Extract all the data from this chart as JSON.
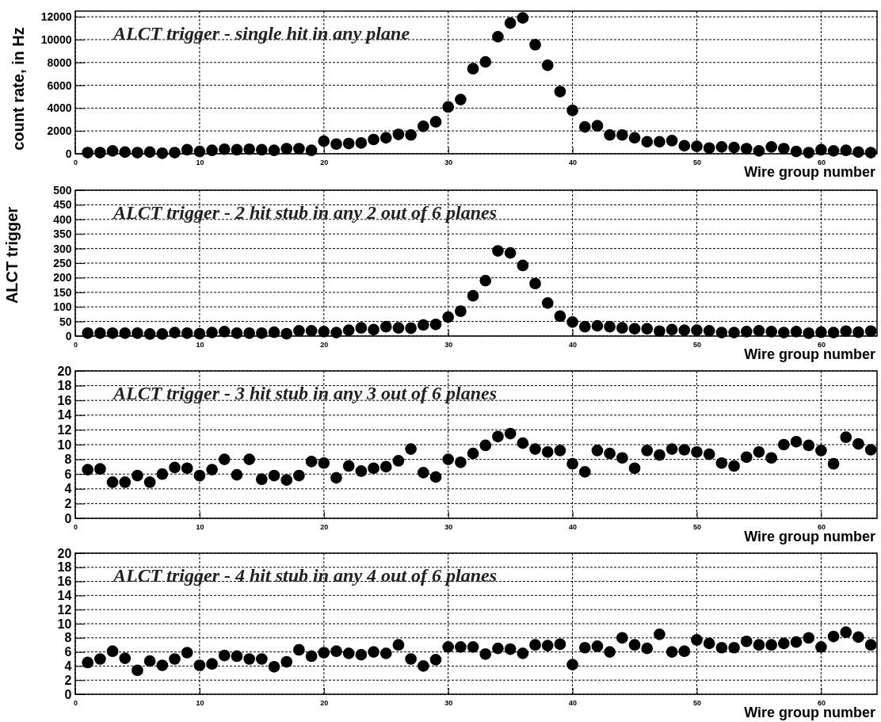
{
  "chart_data": [
    {
      "type": "scatter",
      "title": "ALCT trigger - single hit in any plane",
      "xlabel": "Wire group number",
      "ylabel": "count rate, in Hz",
      "marker": "circle",
      "grid": true,
      "xlim": [
        0,
        64.5
      ],
      "xticks": [
        0,
        10,
        20,
        30,
        40,
        50,
        60
      ],
      "ylim": [
        0,
        12500
      ],
      "yticks": [
        0,
        2000,
        4000,
        6000,
        8000,
        10000,
        12000
      ],
      "x": [
        1,
        2,
        3,
        4,
        5,
        6,
        7,
        8,
        9,
        10,
        11,
        12,
        13,
        14,
        15,
        16,
        17,
        18,
        19,
        20,
        21,
        22,
        23,
        24,
        25,
        26,
        27,
        28,
        29,
        30,
        31,
        32,
        33,
        34,
        35,
        36,
        37,
        38,
        39,
        40,
        41,
        42,
        43,
        44,
        45,
        46,
        47,
        48,
        49,
        50,
        51,
        52,
        53,
        54,
        55,
        56,
        57,
        58,
        59,
        60,
        61,
        62,
        63,
        64
      ],
      "series": [
        {
          "color": "#000000",
          "values": [
            100,
            100,
            250,
            150,
            100,
            150,
            50,
            100,
            350,
            200,
            300,
            400,
            350,
            400,
            350,
            300,
            450,
            450,
            300,
            1100,
            850,
            900,
            950,
            1250,
            1400,
            1700,
            1650,
            2400,
            2800,
            4100,
            4750,
            7450,
            8050,
            10250,
            11450,
            11900,
            9550,
            7750,
            5450,
            3800,
            2350,
            2450,
            1650,
            1650,
            1400,
            1050,
            1050,
            1150,
            700,
            650,
            500,
            600,
            550,
            450,
            250,
            600,
            450,
            200,
            100,
            350,
            250,
            300,
            150,
            100
          ]
        }
      ]
    },
    {
      "type": "scatter",
      "title": "ALCT trigger - 2 hit stub in any 2 out of 6 planes",
      "xlabel": "Wire group number",
      "ylabel": "ALCT trigger",
      "marker": "circle",
      "grid": true,
      "xlim": [
        0,
        64.5
      ],
      "xticks": [
        0,
        10,
        20,
        30,
        40,
        50,
        60
      ],
      "ylim": [
        0,
        500
      ],
      "yticks": [
        0,
        50,
        100,
        150,
        200,
        250,
        300,
        350,
        400,
        450,
        500
      ],
      "x": [
        1,
        2,
        3,
        4,
        5,
        6,
        7,
        8,
        9,
        10,
        11,
        12,
        13,
        14,
        15,
        16,
        17,
        18,
        19,
        20,
        21,
        22,
        23,
        24,
        25,
        26,
        27,
        28,
        29,
        30,
        31,
        32,
        33,
        34,
        35,
        36,
        37,
        38,
        39,
        40,
        41,
        42,
        43,
        44,
        45,
        46,
        47,
        48,
        49,
        50,
        51,
        52,
        53,
        54,
        55,
        56,
        57,
        58,
        59,
        60,
        61,
        62,
        63,
        64
      ],
      "series": [
        {
          "color": "#000000",
          "values": [
            10,
            10,
            10,
            10,
            10,
            7,
            7,
            12,
            10,
            8,
            12,
            15,
            10,
            10,
            10,
            13,
            8,
            18,
            18,
            15,
            12,
            20,
            28,
            22,
            32,
            28,
            27,
            38,
            40,
            65,
            85,
            138,
            190,
            292,
            285,
            242,
            180,
            113,
            68,
            48,
            32,
            35,
            32,
            28,
            25,
            25,
            17,
            22,
            20,
            20,
            18,
            12,
            12,
            15,
            18,
            15,
            12,
            15,
            10,
            13,
            12,
            17,
            13,
            17
          ]
        }
      ]
    },
    {
      "type": "scatter",
      "title": "ALCT trigger - 3 hit stub in any 3 out of 6 planes",
      "xlabel": "Wire group number",
      "marker": "circle",
      "grid": true,
      "xlim": [
        0,
        64.5
      ],
      "xticks": [
        0,
        10,
        20,
        30,
        40,
        50,
        60
      ],
      "ylim": [
        0,
        20
      ],
      "yticks": [
        0,
        2,
        4,
        6,
        8,
        10,
        12,
        14,
        16,
        18,
        20
      ],
      "x": [
        1,
        2,
        3,
        4,
        5,
        6,
        7,
        8,
        9,
        10,
        11,
        12,
        13,
        14,
        15,
        16,
        17,
        18,
        19,
        20,
        21,
        22,
        23,
        24,
        25,
        26,
        27,
        28,
        29,
        30,
        31,
        32,
        33,
        34,
        35,
        36,
        37,
        38,
        39,
        40,
        41,
        42,
        43,
        44,
        45,
        46,
        47,
        48,
        49,
        50,
        51,
        52,
        53,
        54,
        55,
        56,
        57,
        58,
        59,
        60,
        61,
        62,
        63,
        64
      ],
      "series": [
        {
          "color": "#000000",
          "values": [
            6.6,
            6.7,
            4.9,
            4.9,
            5.8,
            4.9,
            6.0,
            6.9,
            6.8,
            5.8,
            6.6,
            8.0,
            5.9,
            8.0,
            5.3,
            5.8,
            5.2,
            5.8,
            7.7,
            7.5,
            5.5,
            7.1,
            6.4,
            6.8,
            7.0,
            7.8,
            9.4,
            6.2,
            5.6,
            8.0,
            7.6,
            8.8,
            9.9,
            11.1,
            11.5,
            10.2,
            9.4,
            9.0,
            9.2,
            7.4,
            6.3,
            9.2,
            8.8,
            8.2,
            6.8,
            9.2,
            8.6,
            9.4,
            9.3,
            9.0,
            8.7,
            7.5,
            7.1,
            8.3,
            9.0,
            8.2,
            10.0,
            10.4,
            9.9,
            9.2,
            7.4,
            11.0,
            10.1,
            9.3
          ]
        }
      ]
    },
    {
      "type": "scatter",
      "title": "ALCT trigger - 4 hit stub in any 4 out of 6 planes",
      "xlabel": "Wire group number",
      "marker": "circle",
      "grid": true,
      "xlim": [
        0,
        64.5
      ],
      "xticks": [
        0,
        10,
        20,
        30,
        40,
        50,
        60
      ],
      "ylim": [
        0,
        20
      ],
      "yticks": [
        0,
        2,
        4,
        6,
        8,
        10,
        12,
        14,
        16,
        18,
        20
      ],
      "x": [
        1,
        2,
        3,
        4,
        5,
        6,
        7,
        8,
        9,
        10,
        11,
        12,
        13,
        14,
        15,
        16,
        17,
        18,
        19,
        20,
        21,
        22,
        23,
        24,
        25,
        26,
        27,
        28,
        29,
        30,
        31,
        32,
        33,
        34,
        35,
        36,
        37,
        38,
        39,
        40,
        41,
        42,
        43,
        44,
        45,
        46,
        47,
        48,
        49,
        50,
        51,
        52,
        53,
        54,
        55,
        56,
        57,
        58,
        59,
        60,
        61,
        62,
        63,
        64
      ],
      "series": [
        {
          "color": "#000000",
          "values": [
            4.5,
            5.0,
            6.1,
            5.1,
            3.4,
            4.7,
            4.1,
            5.0,
            5.9,
            4.1,
            4.3,
            5.5,
            5.4,
            5.0,
            5.0,
            3.9,
            4.6,
            6.3,
            5.4,
            5.9,
            6.1,
            5.8,
            5.6,
            6.0,
            5.8,
            7.0,
            5.0,
            4.0,
            4.9,
            6.7,
            6.7,
            6.7,
            5.7,
            6.5,
            6.4,
            5.8,
            7.0,
            6.9,
            7.1,
            4.2,
            6.6,
            6.8,
            6.0,
            8.0,
            7.0,
            6.5,
            8.5,
            6.0,
            6.1,
            7.7,
            7.2,
            6.6,
            6.6,
            7.5,
            7.0,
            7.0,
            7.2,
            7.4,
            8.0,
            6.7,
            8.2,
            8.8,
            8.1,
            7.0
          ]
        }
      ]
    }
  ]
}
